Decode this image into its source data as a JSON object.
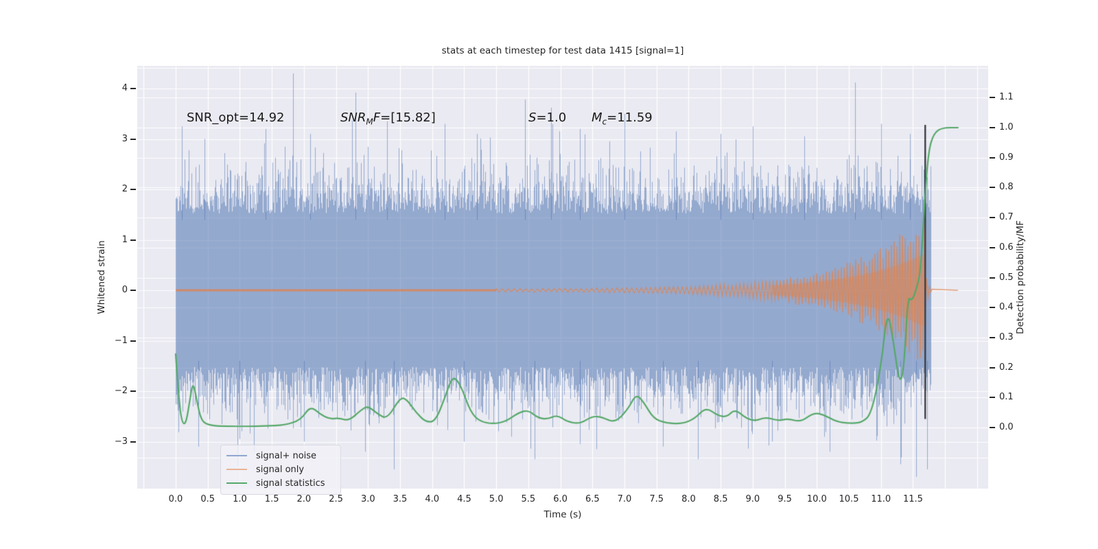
{
  "figure": {
    "title": "stats at each timestep for test data 1415 [signal=1]",
    "background": "#ffffff",
    "plot_background": "#eaeaf2",
    "grid_color": "#ffffff"
  },
  "annotations": {
    "snr_opt": {
      "text": "SNR_opt=14.92"
    },
    "snr_mf": {
      "pre": "SNR",
      "sub": "M",
      "mid": "F",
      "post": "=[15.82]"
    },
    "s": {
      "var": "S",
      "post": "=1.0"
    },
    "mc": {
      "var": "M",
      "sub": "c",
      "post": "=11.59"
    }
  },
  "legend": {
    "entries": [
      {
        "label": "signal+ noise",
        "color": "#8fa7d0"
      },
      {
        "label": "signal only",
        "color": "#eab295"
      },
      {
        "label": "signal statistics",
        "color": "#55a868"
      }
    ]
  },
  "chart_data": {
    "type": "line",
    "title": "stats at each timestep for test data 1415 [signal=1]",
    "xlabel": "Time (s)",
    "ylabel_left": "Whitened strain",
    "ylabel_right": "Detection probability/MF",
    "x_axis": {
      "min": -0.6,
      "max": 12.68,
      "tick_labels": [
        "0.0",
        "0.5",
        "1.0",
        "1.5",
        "2.0",
        "2.5",
        "3.0",
        "3.5",
        "4.0",
        "4.5",
        "5.0",
        "5.5",
        "6.0",
        "6.5",
        "7.0",
        "7.5",
        "8.0",
        "8.5",
        "9.0",
        "9.5",
        "10.0",
        "10.5",
        "11.0",
        "11.5"
      ],
      "tick_values": [
        0,
        0.5,
        1,
        1.5,
        2,
        2.5,
        3,
        3.5,
        4,
        4.5,
        5,
        5.5,
        6,
        6.5,
        7,
        7.5,
        8,
        8.5,
        9,
        9.5,
        10,
        10.5,
        11,
        11.5
      ],
      "grid_extra": [
        -0.5,
        12.0,
        12.5
      ]
    },
    "y_left": {
      "min": -3.93,
      "max": 4.45,
      "tick_labels": [
        "4",
        "3",
        "2",
        "1",
        "0",
        "−1",
        "−2",
        "−3"
      ],
      "tick_values": [
        4,
        3,
        2,
        1,
        0,
        -1,
        -2,
        -3
      ]
    },
    "y_right": {
      "min": -0.2,
      "max": 1.21,
      "tick_labels": [
        "1.1",
        "1.0",
        "0.9",
        "0.8",
        "0.7",
        "0.6",
        "0.5",
        "0.4",
        "0.3",
        "0.2",
        "0.1",
        "0.0"
      ],
      "tick_values": [
        1.1,
        1.0,
        0.9,
        0.8,
        0.7,
        0.6,
        0.5,
        0.4,
        0.3,
        0.2,
        0.1,
        0.0
      ],
      "grid_extra": [
        -0.1,
        1.2
      ]
    },
    "series": [
      {
        "name": "signal+ noise",
        "type": "noise_band",
        "axis": "left",
        "color": "#4C72B0",
        "alpha": 0.55,
        "seed": 1415,
        "t_start": 0.0,
        "t_end": 11.77,
        "base_level": 1.52,
        "sigma": 0.5,
        "spike_prob": 0.02,
        "top_spikes": [
          [
            0.1,
            3.25
          ],
          [
            0.45,
            3.0
          ],
          [
            1.4,
            3.2
          ],
          [
            2.1,
            3.1
          ],
          [
            2.8,
            3.92
          ],
          [
            3.3,
            3.35
          ],
          [
            4.2,
            3.3
          ],
          [
            4.7,
            3.1
          ],
          [
            5.45,
            3.78
          ],
          [
            5.85,
            3.62
          ],
          [
            6.3,
            3.2
          ],
          [
            7.0,
            3.5
          ],
          [
            7.8,
            3.15
          ],
          [
            8.5,
            3.1
          ],
          [
            9.0,
            3.25
          ],
          [
            9.8,
            3.05
          ],
          [
            10.6,
            4.12
          ],
          [
            11.0,
            3.3
          ],
          [
            11.45,
            3.1
          ]
        ],
        "bottom_spikes": [
          [
            0.35,
            -3.1
          ],
          [
            1.0,
            -2.95
          ],
          [
            2.0,
            -3.0
          ],
          [
            2.95,
            -3.2
          ],
          [
            3.4,
            -3.55
          ],
          [
            4.5,
            -3.0
          ],
          [
            5.6,
            -3.35
          ],
          [
            6.3,
            -3.05
          ],
          [
            7.6,
            -3.1
          ],
          [
            8.15,
            -3.35
          ],
          [
            9.3,
            -3.0
          ],
          [
            10.2,
            -3.2
          ],
          [
            11.3,
            -3.45
          ],
          [
            11.55,
            -3.7
          ],
          [
            11.72,
            -3.55
          ]
        ]
      },
      {
        "name": "signal only",
        "type": "chirp",
        "axis": "left",
        "color": "#DD8452",
        "alpha": 0.8,
        "flat_amp": 0.02,
        "flat_t_end": 5.0,
        "env_base": 0.025,
        "env_peak": 1.3,
        "env_tau": 1.1,
        "merger_t": 11.69,
        "tail_t_end": 12.2,
        "merger_line": {
          "color": "#3c3e44",
          "top_strain": 3.28,
          "bottom_strain": -2.55,
          "width": 2.4
        }
      },
      {
        "name": "signal statistics",
        "type": "line",
        "axis": "right",
        "color": "#55a868",
        "width": 2.2,
        "points": [
          [
            0.0,
            0.245
          ],
          [
            0.05,
            0.09
          ],
          [
            0.1,
            0.015
          ],
          [
            0.16,
            0.012
          ],
          [
            0.22,
            0.09
          ],
          [
            0.27,
            0.155
          ],
          [
            0.33,
            0.09
          ],
          [
            0.4,
            0.02
          ],
          [
            0.55,
            0.006
          ],
          [
            0.8,
            0.004
          ],
          [
            1.1,
            0.004
          ],
          [
            1.4,
            0.005
          ],
          [
            1.7,
            0.008
          ],
          [
            1.95,
            0.025
          ],
          [
            2.1,
            0.072
          ],
          [
            2.25,
            0.045
          ],
          [
            2.4,
            0.028
          ],
          [
            2.55,
            0.032
          ],
          [
            2.7,
            0.022
          ],
          [
            2.9,
            0.06
          ],
          [
            3.0,
            0.072
          ],
          [
            3.15,
            0.045
          ],
          [
            3.3,
            0.028
          ],
          [
            3.5,
            0.1
          ],
          [
            3.6,
            0.095
          ],
          [
            3.75,
            0.05
          ],
          [
            3.9,
            0.018
          ],
          [
            4.05,
            0.02
          ],
          [
            4.2,
            0.1
          ],
          [
            4.32,
            0.175
          ],
          [
            4.45,
            0.14
          ],
          [
            4.6,
            0.05
          ],
          [
            4.75,
            0.02
          ],
          [
            4.95,
            0.012
          ],
          [
            5.15,
            0.02
          ],
          [
            5.35,
            0.05
          ],
          [
            5.5,
            0.058
          ],
          [
            5.65,
            0.032
          ],
          [
            5.8,
            0.028
          ],
          [
            5.95,
            0.042
          ],
          [
            6.1,
            0.02
          ],
          [
            6.3,
            0.012
          ],
          [
            6.5,
            0.038
          ],
          [
            6.65,
            0.035
          ],
          [
            6.85,
            0.015
          ],
          [
            7.05,
            0.06
          ],
          [
            7.18,
            0.112
          ],
          [
            7.3,
            0.085
          ],
          [
            7.45,
            0.03
          ],
          [
            7.65,
            0.015
          ],
          [
            7.9,
            0.012
          ],
          [
            8.1,
            0.03
          ],
          [
            8.27,
            0.068
          ],
          [
            8.45,
            0.04
          ],
          [
            8.6,
            0.035
          ],
          [
            8.72,
            0.062
          ],
          [
            8.9,
            0.03
          ],
          [
            9.05,
            0.022
          ],
          [
            9.2,
            0.035
          ],
          [
            9.4,
            0.022
          ],
          [
            9.55,
            0.03
          ],
          [
            9.75,
            0.018
          ],
          [
            9.95,
            0.05
          ],
          [
            10.12,
            0.042
          ],
          [
            10.3,
            0.02
          ],
          [
            10.5,
            0.014
          ],
          [
            10.7,
            0.016
          ],
          [
            10.85,
            0.045
          ],
          [
            11.0,
            0.2
          ],
          [
            11.1,
            0.4
          ],
          [
            11.2,
            0.28
          ],
          [
            11.28,
            0.155
          ],
          [
            11.35,
            0.17
          ],
          [
            11.42,
            0.44
          ],
          [
            11.48,
            0.42
          ],
          [
            11.55,
            0.46
          ],
          [
            11.62,
            0.52
          ],
          [
            11.68,
            0.75
          ],
          [
            11.74,
            0.92
          ],
          [
            11.82,
            0.98
          ],
          [
            11.95,
            1.0
          ],
          [
            12.2,
            1.0
          ]
        ]
      }
    ]
  }
}
